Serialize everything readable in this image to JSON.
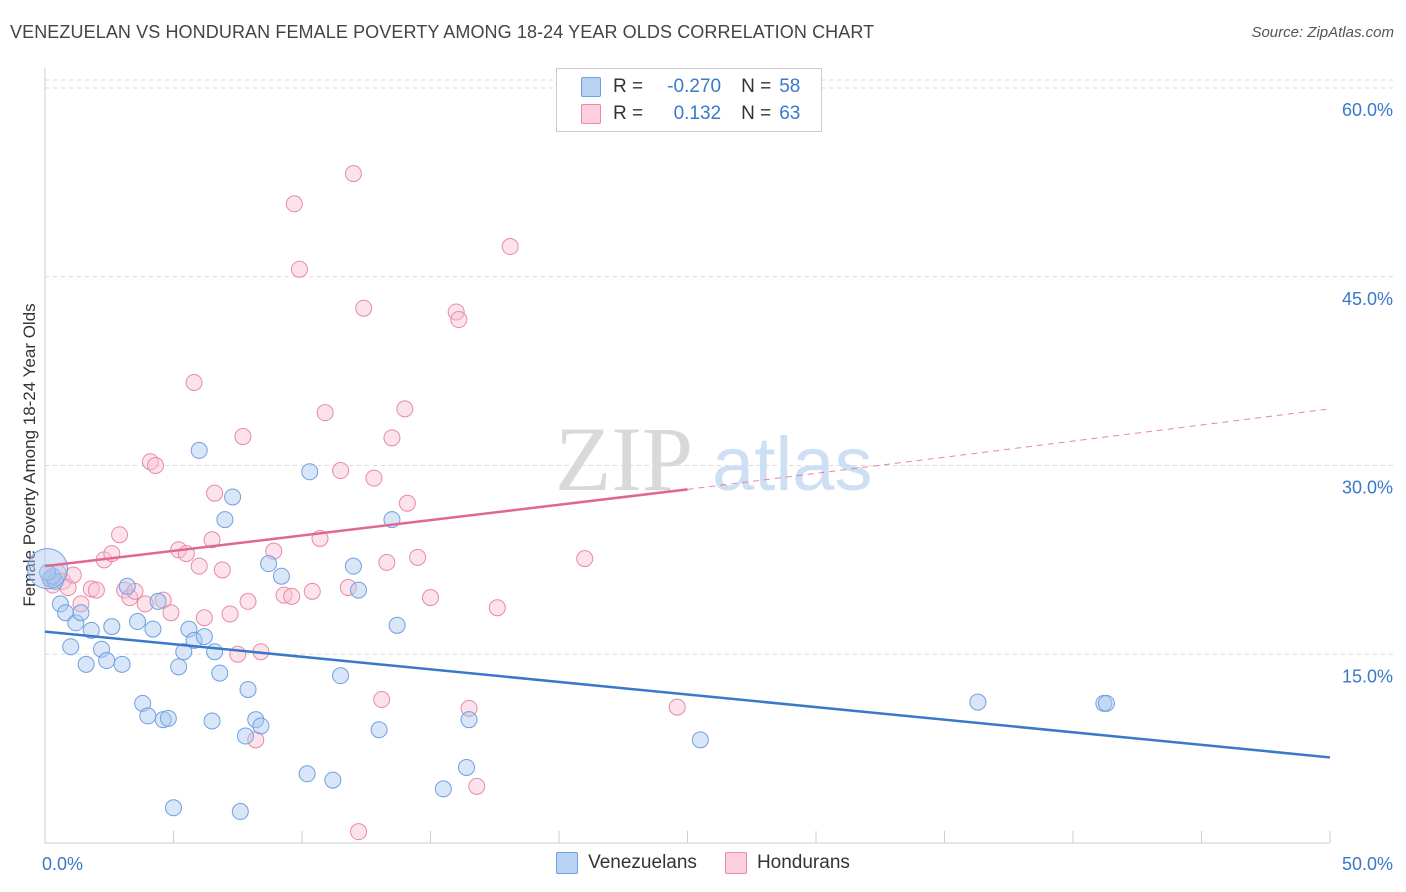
{
  "title": "VENEZUELAN VS HONDURAN FEMALE POVERTY AMONG 18-24 YEAR OLDS CORRELATION CHART",
  "source": "Source: ZipAtlas.com",
  "watermark": {
    "zip": "ZIP",
    "atlas": "atlas"
  },
  "legend": {
    "rows": [
      {
        "r_label": "R =",
        "r_value": "-0.270",
        "n_label": "N =",
        "n_value": "58",
        "color": "#a8c8f0",
        "border": "#6fa0e0"
      },
      {
        "r_label": "R =",
        "r_value": "0.132",
        "n_label": "N =",
        "n_value": "63",
        "color": "#f9c0d2",
        "border": "#e88aa8"
      }
    ]
  },
  "bottom_legend": {
    "series1": "Venezuelans",
    "series2": "Hondurans"
  },
  "chart_data": {
    "type": "scatter",
    "title": "VENEZUELAN VS HONDURAN FEMALE POVERTY AMONG 18-24 YEAR OLDS CORRELATION CHART",
    "xlabel": "",
    "ylabel": "Female Poverty Among 18-24 Year Olds",
    "xlim": [
      0,
      50
    ],
    "ylim": [
      0,
      60
    ],
    "x_tick_labels": [
      "0.0%",
      "50.0%"
    ],
    "y_tick_labels": [
      {
        "value": 15,
        "label": "15.0%"
      },
      {
        "value": 30,
        "label": "30.0%"
      },
      {
        "value": 45,
        "label": "45.0%"
      },
      {
        "value": 60,
        "label": "60.0%"
      }
    ],
    "grid": true,
    "colors": {
      "venezuelans": "#3a78c9",
      "hondurans": "#e06890",
      "venezuelans_fill": "#a8c8f0",
      "hondurans_fill": "#f9c0d2"
    },
    "series": [
      {
        "name": "Venezuelans",
        "trend": {
          "x": [
            0,
            50
          ],
          "y": [
            16.8,
            6.8
          ]
        },
        "points": [
          [
            0.2,
            21.0
          ],
          [
            0.4,
            20.8
          ],
          [
            0.6,
            19.0
          ],
          [
            0.8,
            18.3
          ],
          [
            1.0,
            15.6
          ],
          [
            1.2,
            17.5
          ],
          [
            1.4,
            18.3
          ],
          [
            1.6,
            14.2
          ],
          [
            1.8,
            16.9
          ],
          [
            2.2,
            15.4
          ],
          [
            2.4,
            14.5
          ],
          [
            2.6,
            17.2
          ],
          [
            3.0,
            14.2
          ],
          [
            3.2,
            20.4
          ],
          [
            3.6,
            17.6
          ],
          [
            3.8,
            11.1
          ],
          [
            4.0,
            10.1
          ],
          [
            4.2,
            17.0
          ],
          [
            4.4,
            19.2
          ],
          [
            4.6,
            9.8
          ],
          [
            4.8,
            9.9
          ],
          [
            5.0,
            2.8
          ],
          [
            5.2,
            14.0
          ],
          [
            5.4,
            15.2
          ],
          [
            5.6,
            17.0
          ],
          [
            5.8,
            16.1
          ],
          [
            6.0,
            31.2
          ],
          [
            6.2,
            16.4
          ],
          [
            6.5,
            9.7
          ],
          [
            6.6,
            15.2
          ],
          [
            6.8,
            13.5
          ],
          [
            7.0,
            25.7
          ],
          [
            7.3,
            27.5
          ],
          [
            7.6,
            2.5
          ],
          [
            7.8,
            8.5
          ],
          [
            7.9,
            12.2
          ],
          [
            8.2,
            9.8
          ],
          [
            8.4,
            9.3
          ],
          [
            8.7,
            22.2
          ],
          [
            9.2,
            21.2
          ],
          [
            10.2,
            5.5
          ],
          [
            10.3,
            29.5
          ],
          [
            11.2,
            5.0
          ],
          [
            11.5,
            13.3
          ],
          [
            12.0,
            22.0
          ],
          [
            12.2,
            20.1
          ],
          [
            13.0,
            9.0
          ],
          [
            13.5,
            25.7
          ],
          [
            13.7,
            17.3
          ],
          [
            15.5,
            4.3
          ],
          [
            16.4,
            6.0
          ],
          [
            16.5,
            9.8
          ],
          [
            25.5,
            8.2
          ],
          [
            36.3,
            11.2
          ],
          [
            41.2,
            11.1
          ],
          [
            41.3,
            11.1
          ],
          [
            0.3,
            21.2
          ],
          [
            0.1,
            21.5
          ]
        ]
      },
      {
        "name": "Hondurans",
        "trend": {
          "x": [
            0,
            25
          ],
          "y": [
            22.0,
            28.1
          ]
        },
        "trend_dashed": {
          "x": [
            25,
            50
          ],
          "y": [
            28.1,
            34.5
          ]
        },
        "points": [
          [
            0.2,
            21.0
          ],
          [
            0.3,
            20.5
          ],
          [
            0.5,
            21.5
          ],
          [
            0.7,
            20.8
          ],
          [
            0.9,
            20.3
          ],
          [
            1.1,
            21.3
          ],
          [
            1.4,
            19.0
          ],
          [
            1.8,
            20.2
          ],
          [
            2.0,
            20.1
          ],
          [
            2.3,
            22.5
          ],
          [
            2.6,
            23.0
          ],
          [
            2.9,
            24.5
          ],
          [
            3.1,
            20.1
          ],
          [
            3.3,
            19.5
          ],
          [
            3.5,
            20.0
          ],
          [
            3.9,
            19.0
          ],
          [
            4.1,
            30.3
          ],
          [
            4.3,
            30.0
          ],
          [
            4.6,
            19.3
          ],
          [
            4.9,
            18.3
          ],
          [
            5.2,
            23.3
          ],
          [
            5.5,
            23.0
          ],
          [
            5.8,
            36.6
          ],
          [
            6.0,
            22.0
          ],
          [
            6.2,
            17.9
          ],
          [
            6.5,
            24.1
          ],
          [
            6.6,
            27.8
          ],
          [
            6.9,
            21.7
          ],
          [
            7.2,
            18.2
          ],
          [
            7.5,
            15.0
          ],
          [
            7.7,
            32.3
          ],
          [
            7.9,
            19.2
          ],
          [
            8.2,
            8.2
          ],
          [
            8.4,
            15.2
          ],
          [
            8.9,
            23.2
          ],
          [
            9.3,
            19.7
          ],
          [
            9.6,
            19.6
          ],
          [
            9.7,
            50.8
          ],
          [
            9.9,
            45.6
          ],
          [
            10.4,
            20.0
          ],
          [
            10.7,
            24.2
          ],
          [
            10.9,
            34.2
          ],
          [
            11.5,
            29.6
          ],
          [
            11.8,
            20.3
          ],
          [
            12.0,
            53.2
          ],
          [
            12.2,
            0.9
          ],
          [
            12.4,
            42.5
          ],
          [
            12.8,
            29.0
          ],
          [
            13.1,
            11.4
          ],
          [
            13.3,
            22.3
          ],
          [
            13.5,
            32.2
          ],
          [
            14.0,
            34.5
          ],
          [
            14.1,
            27.0
          ],
          [
            14.5,
            22.7
          ],
          [
            15.0,
            19.5
          ],
          [
            16.0,
            42.2
          ],
          [
            16.1,
            41.6
          ],
          [
            16.5,
            10.7
          ],
          [
            16.8,
            4.5
          ],
          [
            17.6,
            18.7
          ],
          [
            18.1,
            47.4
          ],
          [
            21.0,
            22.6
          ],
          [
            24.6,
            10.8
          ]
        ]
      }
    ]
  }
}
